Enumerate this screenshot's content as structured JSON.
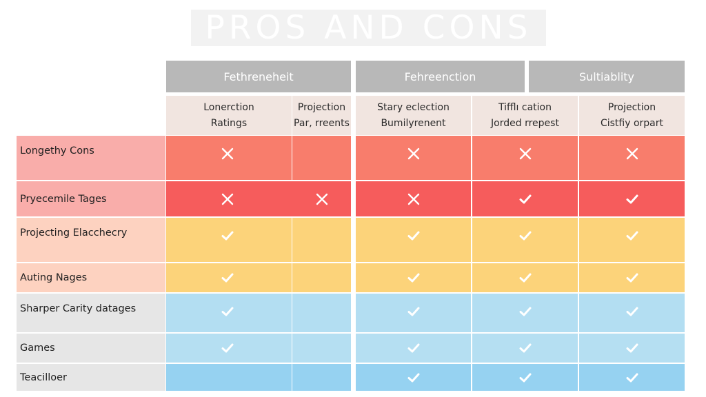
{
  "title": "PROS AND CONS",
  "groups": [
    {
      "label": "Fethreneheit"
    },
    {
      "label": "Fehreenction"
    },
    {
      "label": "Sultiablity"
    }
  ],
  "columns": [
    {
      "line1": "Lonerction",
      "line2": "Ratings"
    },
    {
      "line1": "Projection",
      "line2": "Par, rreents"
    },
    {
      "line1": "Stary eclection",
      "line2": "Bumilyrenent"
    },
    {
      "line1": "Tifflı cation",
      "line2": "Jorded rrepest"
    },
    {
      "line1": "Projection",
      "line2": "Cistfiy orpart"
    }
  ],
  "rows": [
    {
      "label": "Longethy Cons",
      "marks": [
        "cross",
        "",
        "cross",
        "cross",
        "cross"
      ]
    },
    {
      "label": "Pryecemile Tages",
      "marks": [
        "cross",
        "cross",
        "cross",
        "check",
        "check"
      ]
    },
    {
      "label": "Projecting Elacchecry",
      "marks": [
        "check",
        "",
        "check",
        "check",
        "check"
      ]
    },
    {
      "label": "Auting Nages",
      "marks": [
        "check",
        "",
        "check",
        "check",
        "check"
      ]
    },
    {
      "label": "Sharper Carity datages",
      "marks": [
        "check",
        "",
        "check",
        "check",
        "check"
      ]
    },
    {
      "label": "Games",
      "marks": [
        "check",
        "",
        "check",
        "check",
        "check"
      ]
    },
    {
      "label": "Teacilloer",
      "marks": [
        "",
        "",
        "check",
        "check",
        "check"
      ]
    }
  ],
  "colors": {
    "group_header_bg": "#b8b8b8",
    "sub_header_bg": "#f1e5e0",
    "row_label_bg": [
      "#f9adaa",
      "#f9adaa",
      "#fdd2c0",
      "#fdd2c0",
      "#e6e6e6",
      "#e6e6e6",
      "#e6e6e6"
    ],
    "row_cell_bg": [
      "#f87d6c",
      "#f65c5c",
      "#fcd37a",
      "#fcd37a",
      "#b3def2",
      "#b5dff2",
      "#96d2f1"
    ]
  }
}
